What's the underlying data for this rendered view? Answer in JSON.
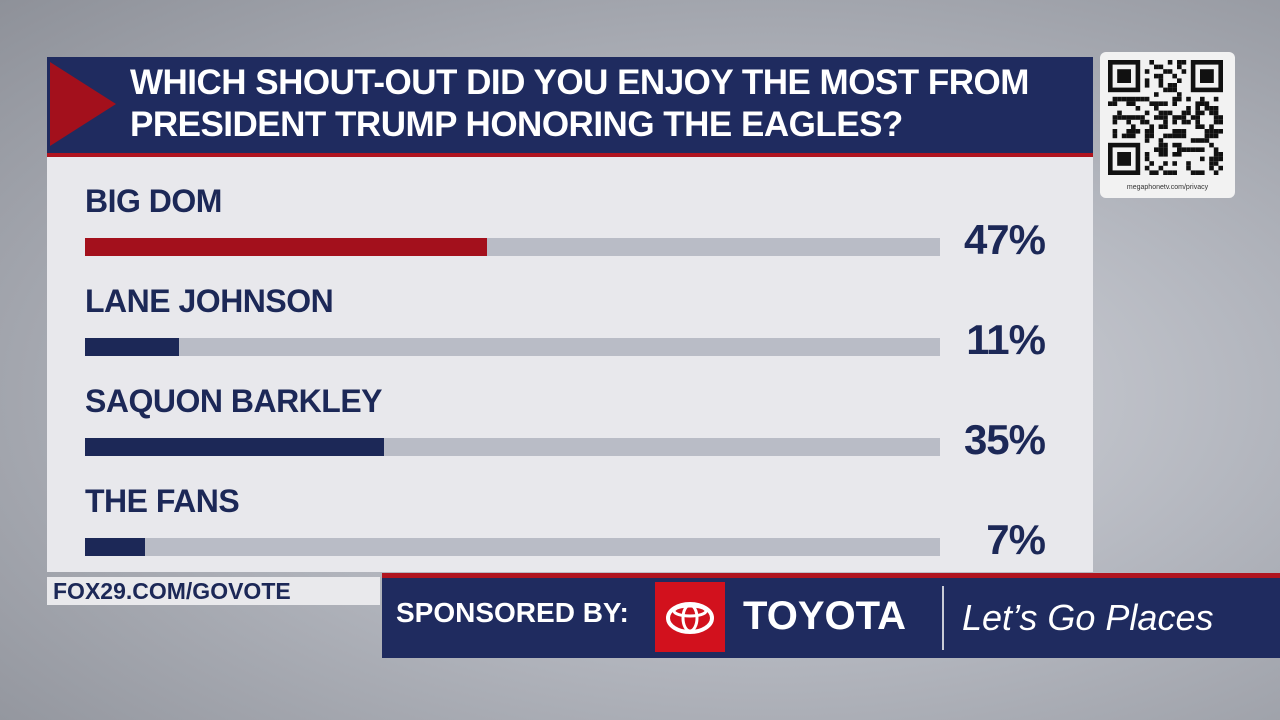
{
  "chart_data": {
    "type": "bar",
    "orientation": "horizontal",
    "title": "WHICH SHOUT-OUT DID YOU ENJOY THE MOST FROM PRESIDENT TRUMP HONORING THE EAGLES?",
    "categories": [
      "BIG DOM",
      "LANE JOHNSON",
      "SAQUON BARKLEY",
      "THE FANS"
    ],
    "values": [
      47,
      11,
      35,
      7
    ],
    "value_labels": [
      "47%",
      "11%",
      "35%",
      "7%"
    ],
    "colors": [
      "#a3101c",
      "#1c2857",
      "#1c2857",
      "#1c2857"
    ],
    "track_color": "#b9bcc6",
    "xlim": [
      0,
      100
    ]
  },
  "footer": {
    "url": "FOX29.COM/GOVOTE",
    "sponsor_label": "SPONSORED BY:",
    "brand": "TOYOTA",
    "slogan": "Let’s Go Places"
  },
  "qr_caption": "megaphonetv.com/privacy"
}
